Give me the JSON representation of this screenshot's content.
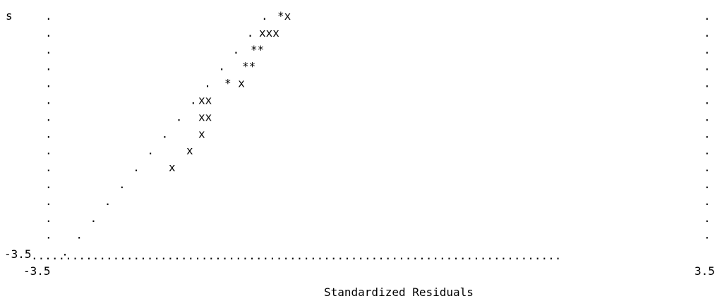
{
  "chart_data": {
    "type": "scatter",
    "style": "text plot (line-printer)",
    "ylabel": "s",
    "xlabel": "Standardized Residuals",
    "x_tick_labels": [
      "-3.5",
      "3.5"
    ],
    "y_tick_labels": [
      "-3.5"
    ],
    "xlim": [
      -3.5,
      3.5
    ],
    "frame_char": ".",
    "reference_line": {
      "symbol": ".",
      "points": [
        {
          "col": 14,
          "row": 0
        },
        {
          "col": 13,
          "row": 1
        },
        {
          "col": 12,
          "row": 2
        },
        {
          "col": 11,
          "row": 3
        },
        {
          "col": 12,
          "row": 4
        },
        {
          "col": 10,
          "row": 5
        },
        {
          "col": 9,
          "row": 6
        },
        {
          "col": 8,
          "row": 7
        },
        {
          "col": 7,
          "row": 8
        },
        {
          "col": 6,
          "row": 9
        },
        {
          "col": 5,
          "row": 10
        },
        {
          "col": 4,
          "row": 11
        },
        {
          "col": 3,
          "row": 12
        },
        {
          "col": 2,
          "row": 13
        },
        {
          "col": 1,
          "row": 14
        }
      ]
    },
    "point_rows": [
      {
        "row": 0,
        "col": 15,
        "text": "*x"
      },
      {
        "row": 1,
        "col": 15,
        "text": "xxx"
      },
      {
        "row": 2,
        "col": 14,
        "text": "**"
      },
      {
        "row": 3,
        "col": 14,
        "text": "**"
      },
      {
        "row": 4,
        "col": 13,
        "text": "* x"
      },
      {
        "row": 5,
        "col": 11,
        "text": "xx"
      },
      {
        "row": 6,
        "col": 11,
        "text": "xx"
      },
      {
        "row": 7,
        "col": 11,
        "text": "x"
      },
      {
        "row": 8,
        "col": 10,
        "text": "x"
      },
      {
        "row": 9,
        "col": 9,
        "text": "x"
      }
    ]
  }
}
